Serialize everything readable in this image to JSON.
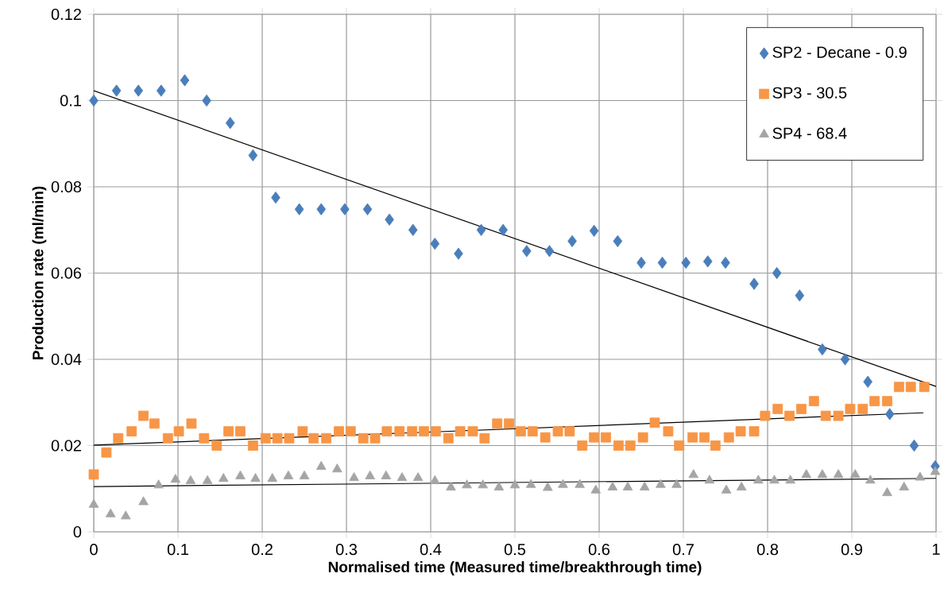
{
  "chart_data": {
    "type": "scatter",
    "xlabel": "Normalised time (Measured time/breakthrough time)",
    "ylabel": "Production rate (ml/min)",
    "xlim": [
      0,
      1
    ],
    "ylim": [
      0,
      0.12
    ],
    "xticks": [
      0,
      0.1,
      0.2,
      0.3,
      0.4,
      0.5,
      0.6,
      0.7,
      0.8,
      0.9,
      1
    ],
    "yticks": [
      0,
      0.02,
      0.04,
      0.06,
      0.08,
      0.1,
      0.12
    ],
    "grid": true,
    "legend": "top right",
    "series": [
      {
        "name": "SP2 - Decane - 0.9",
        "color": "#4a7ebb",
        "marker": "diamond",
        "x": [
          0,
          0.027,
          0.053,
          0.08,
          0.108,
          0.134,
          0.162,
          0.189,
          0.216,
          0.244,
          0.27,
          0.298,
          0.325,
          0.351,
          0.379,
          0.405,
          0.433,
          0.46,
          0.486,
          0.514,
          0.541,
          0.568,
          0.594,
          0.622,
          0.65,
          0.675,
          0.703,
          0.729,
          0.75,
          0.784,
          0.811,
          0.838,
          0.865,
          0.892,
          0.919,
          0.945,
          0.974,
          0.999
        ],
        "values": [
          0.1,
          0.1023,
          0.1023,
          0.1023,
          0.1047,
          0.1,
          0.0948,
          0.0873,
          0.0775,
          0.0748,
          0.0748,
          0.0748,
          0.0748,
          0.0724,
          0.07,
          0.0668,
          0.0645,
          0.07,
          0.07,
          0.0651,
          0.0651,
          0.0674,
          0.0698,
          0.0674,
          0.0624,
          0.0624,
          0.0624,
          0.0627,
          0.0624,
          0.0575,
          0.06,
          0.0548,
          0.0423,
          0.04,
          0.0348,
          0.0273,
          0.02,
          0.0152
        ]
      },
      {
        "name": "SP3 - 30.5",
        "color": "#f79646",
        "marker": "square",
        "x": [
          0,
          0.015,
          0.029,
          0.045,
          0.059,
          0.072,
          0.088,
          0.101,
          0.116,
          0.131,
          0.146,
          0.16,
          0.174,
          0.189,
          0.204,
          0.218,
          0.232,
          0.248,
          0.261,
          0.276,
          0.291,
          0.305,
          0.32,
          0.334,
          0.348,
          0.363,
          0.378,
          0.392,
          0.406,
          0.421,
          0.435,
          0.45,
          0.464,
          0.479,
          0.493,
          0.507,
          0.521,
          0.536,
          0.551,
          0.565,
          0.58,
          0.594,
          0.608,
          0.623,
          0.637,
          0.652,
          0.666,
          0.682,
          0.695,
          0.711,
          0.725,
          0.738,
          0.754,
          0.768,
          0.784,
          0.797,
          0.812,
          0.826,
          0.84,
          0.855,
          0.869,
          0.884,
          0.898,
          0.913,
          0.927,
          0.942,
          0.956,
          0.97,
          0.986
        ],
        "values": [
          0.0133,
          0.0184,
          0.0217,
          0.0233,
          0.0269,
          0.0251,
          0.0217,
          0.0233,
          0.0251,
          0.0217,
          0.02,
          0.0233,
          0.0233,
          0.02,
          0.0217,
          0.0217,
          0.0217,
          0.0233,
          0.0217,
          0.0217,
          0.0233,
          0.0233,
          0.0217,
          0.0217,
          0.0233,
          0.0233,
          0.0233,
          0.0233,
          0.0233,
          0.0217,
          0.0233,
          0.0233,
          0.0217,
          0.0251,
          0.0251,
          0.0233,
          0.0233,
          0.0219,
          0.0233,
          0.0233,
          0.02,
          0.0219,
          0.0219,
          0.02,
          0.02,
          0.0219,
          0.0253,
          0.0233,
          0.02,
          0.0219,
          0.0219,
          0.02,
          0.0219,
          0.0233,
          0.0233,
          0.0269,
          0.0285,
          0.0269,
          0.0285,
          0.0303,
          0.0269,
          0.0269,
          0.0285,
          0.0285,
          0.0303,
          0.0303,
          0.0336,
          0.0336,
          0.0336
        ]
      },
      {
        "name": "SP4 - 68.4",
        "color": "#a5a5a5",
        "marker": "triangle",
        "x": [
          0,
          0.02,
          0.038,
          0.059,
          0.077,
          0.097,
          0.115,
          0.135,
          0.154,
          0.174,
          0.192,
          0.212,
          0.231,
          0.25,
          0.27,
          0.289,
          0.309,
          0.328,
          0.347,
          0.366,
          0.385,
          0.405,
          0.424,
          0.443,
          0.462,
          0.481,
          0.5,
          0.519,
          0.539,
          0.557,
          0.577,
          0.596,
          0.616,
          0.634,
          0.654,
          0.673,
          0.692,
          0.712,
          0.731,
          0.751,
          0.769,
          0.789,
          0.808,
          0.827,
          0.846,
          0.865,
          0.884,
          0.904,
          0.922,
          0.942,
          0.962,
          0.981,
          0.999
        ],
        "values": [
          0.0063,
          0.0041,
          0.0036,
          0.0069,
          0.0108,
          0.0121,
          0.0118,
          0.0118,
          0.0123,
          0.0129,
          0.0123,
          0.0123,
          0.0129,
          0.0129,
          0.0151,
          0.0145,
          0.0125,
          0.0129,
          0.0129,
          0.0125,
          0.0125,
          0.0118,
          0.0103,
          0.0108,
          0.0108,
          0.0103,
          0.0108,
          0.0109,
          0.0102,
          0.0109,
          0.0109,
          0.0096,
          0.0103,
          0.0103,
          0.0103,
          0.0109,
          0.0109,
          0.0132,
          0.0119,
          0.0096,
          0.0103,
          0.0119,
          0.0119,
          0.0119,
          0.0132,
          0.0132,
          0.0132,
          0.0132,
          0.0119,
          0.009,
          0.0103,
          0.0126,
          0.0139
        ]
      },
      {
        "type": "line",
        "color": "#000000",
        "marker": "none",
        "line_style": "solid",
        "x": [
          0,
          1
        ],
        "values": [
          0.1023,
          0.0337
        ]
      },
      {
        "type": "line",
        "color": "#000000",
        "marker": "none",
        "line_style": "solid",
        "x": [
          0,
          0.985
        ],
        "values": [
          0.0201,
          0.0276
        ]
      },
      {
        "type": "line",
        "color": "#000000",
        "marker": "none",
        "line_style": "solid",
        "x": [
          0,
          1
        ],
        "values": [
          0.0105,
          0.0124
        ]
      }
    ]
  }
}
